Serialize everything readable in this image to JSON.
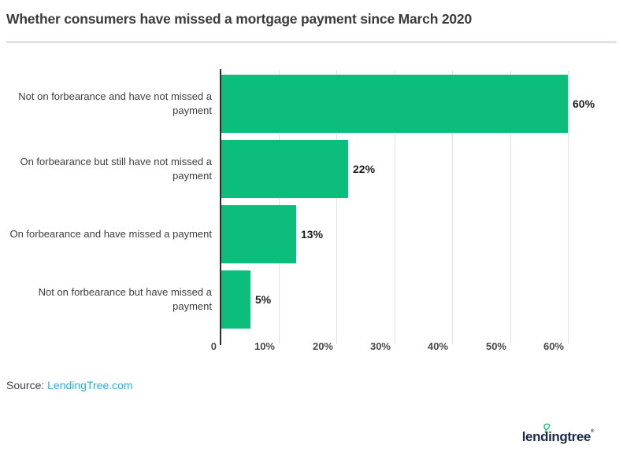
{
  "title": "Whether consumers have missed a mortgage payment since March 2020",
  "source": {
    "prefix": "Source: ",
    "link_text": "LendingTree.com"
  },
  "footer": {
    "logo_text": "lendingtree",
    "logo_reg_mark": "®"
  },
  "colors": {
    "bar_green": "#0cbd7c",
    "leaf_green": "#1fbf6e",
    "logo_navy": "#1b2b49",
    "link_blue": "#29abe2"
  },
  "chart_data": {
    "type": "bar",
    "orientation": "horizontal",
    "title": "Whether consumers have missed a mortgage payment since March 2020",
    "categories": [
      "Not on forbearance and have not missed a payment",
      "On forbearance but still have not missed a payment",
      "On forbearance and have missed a payment",
      "Not on forbearance but have missed a payment"
    ],
    "values": [
      60,
      22,
      13,
      5
    ],
    "value_labels": [
      "60%",
      "22%",
      "13%",
      "5%"
    ],
    "x_ticks": [
      "0",
      "10%",
      "20%",
      "30%",
      "40%",
      "50%",
      "60%"
    ],
    "xlabel": "",
    "ylabel": "",
    "xlim": [
      0,
      66
    ],
    "grid": "vertical",
    "legend": "none",
    "bar_color": "#0cbd7c"
  }
}
